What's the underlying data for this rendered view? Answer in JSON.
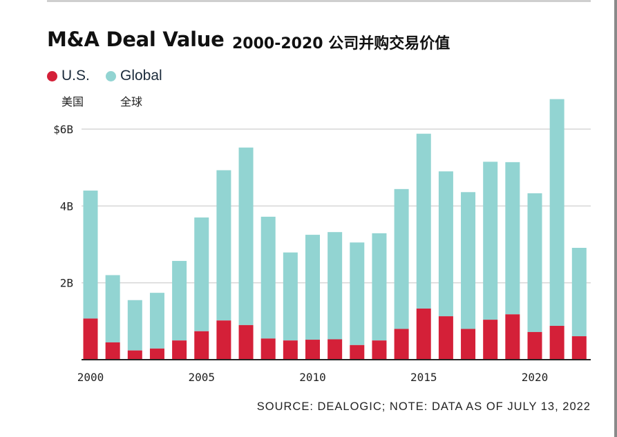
{
  "title": "M&A Deal Value",
  "subtitle": "2000-2020 公司并购交易价值",
  "legend": {
    "us": {
      "label": "U.S.",
      "sub": "美国"
    },
    "global": {
      "label": "Global",
      "sub": "全球"
    }
  },
  "source": "SOURCE: DEALOGIC; NOTE: DATA AS OF JULY 13, 2022",
  "colors": {
    "us": "#d42038",
    "global": "#92d4d2",
    "grid": "#d6d6d6",
    "axis": "#222222"
  },
  "chart_data": {
    "type": "bar",
    "stacked": true,
    "title": "M&A Deal Value",
    "subtitle": "2000-2020 公司并购交易价值",
    "categories": [
      2000,
      2001,
      2002,
      2003,
      2004,
      2005,
      2006,
      2007,
      2008,
      2009,
      2010,
      2011,
      2012,
      2013,
      2014,
      2015,
      2016,
      2017,
      2018,
      2019,
      2020,
      2021,
      2022
    ],
    "series": [
      {
        "name": "U.S.",
        "values": [
          1.07,
          0.45,
          0.24,
          0.29,
          0.5,
          0.74,
          1.02,
          0.9,
          0.55,
          0.5,
          0.52,
          0.53,
          0.38,
          0.5,
          0.8,
          1.33,
          1.13,
          0.8,
          1.04,
          1.18,
          0.72,
          0.88,
          0.61
        ]
      },
      {
        "name": "Global",
        "values": [
          3.33,
          1.75,
          1.31,
          1.45,
          2.07,
          2.96,
          3.91,
          4.62,
          3.17,
          2.29,
          2.73,
          2.79,
          2.67,
          2.79,
          3.64,
          4.55,
          3.77,
          3.56,
          4.11,
          3.96,
          3.61,
          5.9,
          2.3
        ]
      }
    ],
    "ylim": [
      0,
      6.8
    ],
    "yticks": [
      {
        "value": 2,
        "label": "2B"
      },
      {
        "value": 4,
        "label": "4B"
      },
      {
        "value": 6,
        "label": "$6B"
      }
    ],
    "xticks": [
      {
        "value": 2000,
        "label": "2000"
      },
      {
        "value": 2005,
        "label": "2005"
      },
      {
        "value": 2010,
        "label": "2010"
      },
      {
        "value": 2015,
        "label": "2015"
      },
      {
        "value": 2020,
        "label": "2020"
      }
    ],
    "grid": true,
    "legend_position": "top-left"
  }
}
